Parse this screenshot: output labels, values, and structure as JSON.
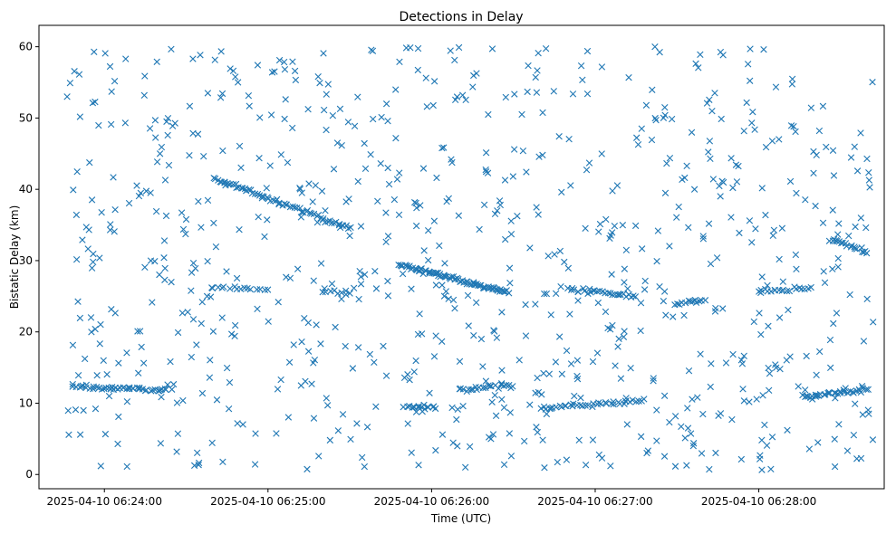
{
  "chart_data": {
    "type": "scatter",
    "title": "Detections in Delay",
    "xlabel": "Time (UTC)",
    "ylabel": "Bistatic Delay (km)",
    "x_type": "time",
    "xlim": [
      "2025-04-10 06:23:36",
      "2025-04-10 06:28:46"
    ],
    "ylim": [
      -2,
      63
    ],
    "x_ticks": [
      "2025-04-10 06:24:00",
      "2025-04-10 06:25:00",
      "2025-04-10 06:26:00",
      "2025-04-10 06:27:00",
      "2025-04-10 06:28:00"
    ],
    "y_ticks": [
      0,
      10,
      20,
      30,
      40,
      50,
      60
    ],
    "marker": "x",
    "grid": false,
    "colors": {
      "series": "#1f77b4",
      "axes": "#000000"
    },
    "series": [
      {
        "tracks": [
          {
            "x0": "2025-04-10 06:23:48",
            "x1": "2025-04-10 06:24:24",
            "y0": 12.3,
            "y1": 11.8,
            "n": 45
          },
          {
            "x0": "2025-04-10 06:24:40",
            "x1": "2025-04-10 06:25:30",
            "y0": 41.5,
            "y1": 34.5,
            "n": 70
          },
          {
            "x0": "2025-04-10 06:24:40",
            "x1": "2025-04-10 06:25:00",
            "y0": 26.3,
            "y1": 26.0,
            "n": 15
          },
          {
            "x0": "2025-04-10 06:25:20",
            "x1": "2025-04-10 06:25:30",
            "y0": 25.8,
            "y1": 25.6,
            "n": 8
          },
          {
            "x0": "2025-04-10 06:25:48",
            "x1": "2025-04-10 06:26:28",
            "y0": 29.5,
            "y1": 25.5,
            "n": 80
          },
          {
            "x0": "2025-04-10 06:25:50",
            "x1": "2025-04-10 06:26:02",
            "y0": 9.6,
            "y1": 9.4,
            "n": 15
          },
          {
            "x0": "2025-04-10 06:26:10",
            "x1": "2025-04-10 06:26:30",
            "y0": 11.9,
            "y1": 12.6,
            "n": 25
          },
          {
            "x0": "2025-04-10 06:26:40",
            "x1": "2025-04-10 06:27:18",
            "y0": 9.3,
            "y1": 10.4,
            "n": 40
          },
          {
            "x0": "2025-04-10 06:26:50",
            "x1": "2025-04-10 06:27:15",
            "y0": 26.0,
            "y1": 25.0,
            "n": 30
          },
          {
            "x0": "2025-04-10 06:27:30",
            "x1": "2025-04-10 06:27:40",
            "y0": 24.0,
            "y1": 24.5,
            "n": 12
          },
          {
            "x0": "2025-04-10 06:28:00",
            "x1": "2025-04-10 06:28:18",
            "y0": 25.6,
            "y1": 26.2,
            "n": 18
          },
          {
            "x0": "2025-04-10 06:28:16",
            "x1": "2025-04-10 06:28:40",
            "y0": 10.8,
            "y1": 12.0,
            "n": 35
          },
          {
            "x0": "2025-04-10 06:28:26",
            "x1": "2025-04-10 06:28:40",
            "y0": 33.0,
            "y1": 31.2,
            "n": 20
          }
        ],
        "clutter": {
          "x0": "2025-04-10 06:23:46",
          "x1": "2025-04-10 06:28:42",
          "y0": 0.5,
          "y1": 60,
          "n": 800
        }
      }
    ]
  }
}
